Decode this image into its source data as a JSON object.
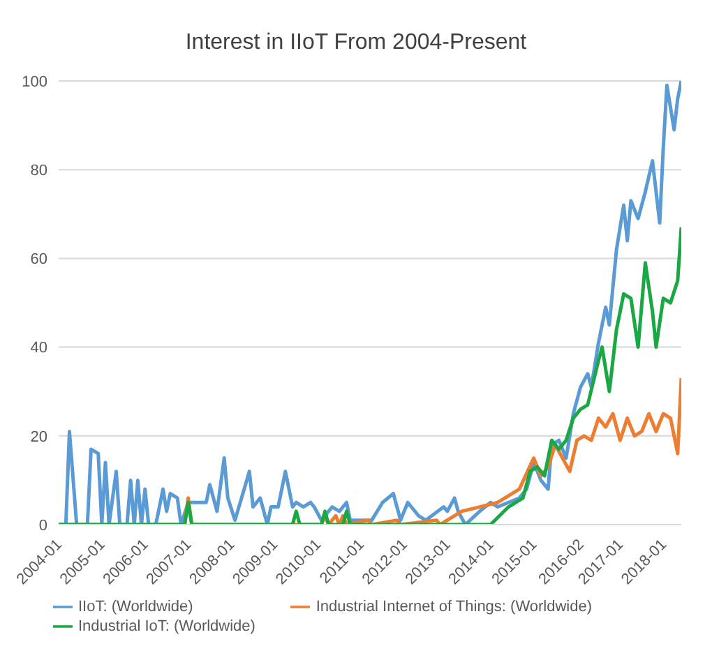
{
  "chart_data": {
    "type": "line",
    "title": "Interest in IIoT From 2004-Present",
    "xlim": [
      "2004-01",
      "2018-06"
    ],
    "xticks": [
      "2004-01",
      "2005-01",
      "2006-01",
      "2007-01",
      "2008-01",
      "2009-01",
      "2010-01",
      "2011-01",
      "2012-01",
      "2013-01",
      "2014-01",
      "2015-01",
      "2016-02",
      "2017-01",
      "2018-01"
    ],
    "ylim": [
      0,
      100
    ],
    "yticks": [
      0,
      20,
      40,
      60,
      80,
      100
    ],
    "grid": "y",
    "legend": "bottom",
    "marker": "none",
    "line_style": "solid",
    "series": [
      {
        "name": "IIoT: (Worldwide)",
        "color": "#5b9bd5",
        "x": [
          "2004-01",
          "2004-03",
          "2004-04",
          "2004-06",
          "2004-09",
          "2004-10",
          "2004-12",
          "2005-01",
          "2005-02",
          "2005-03",
          "2005-05",
          "2005-06",
          "2005-08",
          "2005-09",
          "2005-10",
          "2005-11",
          "2005-12",
          "2006-01",
          "2006-02",
          "2006-04",
          "2006-06",
          "2006-07",
          "2006-08",
          "2006-10",
          "2006-11",
          "2007-01",
          "2007-06",
          "2007-07",
          "2007-09",
          "2007-11",
          "2007-12",
          "2008-02",
          "2008-06",
          "2008-07",
          "2008-09",
          "2008-11",
          "2008-12",
          "2009-02",
          "2009-04",
          "2009-06",
          "2009-07",
          "2009-09",
          "2009-11",
          "2009-12",
          "2010-02",
          "2010-05",
          "2010-07",
          "2010-09",
          "2010-10",
          "2011-02",
          "2011-04",
          "2011-07",
          "2011-10",
          "2011-12",
          "2012-02",
          "2012-05",
          "2012-07",
          "2012-12",
          "2013-01",
          "2013-03",
          "2013-04",
          "2013-06",
          "2013-10",
          "2014-01",
          "2014-03",
          "2014-06",
          "2014-09",
          "2014-11",
          "2015-01",
          "2015-03",
          "2015-05",
          "2015-06",
          "2015-08",
          "2015-10",
          "2015-12",
          "2016-02",
          "2016-04",
          "2016-05",
          "2016-07",
          "2016-09",
          "2016-10",
          "2016-12",
          "2017-02",
          "2017-03",
          "2017-04",
          "2017-06",
          "2017-08",
          "2017-10",
          "2017-12",
          "2018-01",
          "2018-02",
          "2018-04",
          "2018-05",
          "2018-06"
        ],
        "values": [
          0,
          0,
          21,
          0,
          0,
          17,
          16,
          0,
          14,
          0,
          12,
          0,
          0,
          10,
          0,
          10,
          0,
          8,
          0,
          0,
          8,
          3,
          7,
          6,
          0,
          5,
          5,
          9,
          3,
          15,
          6,
          1,
          12,
          4,
          6,
          0,
          4,
          4,
          12,
          4,
          5,
          4,
          5,
          4,
          1,
          4,
          3,
          5,
          1,
          1,
          1,
          5,
          7,
          1,
          5,
          2,
          1,
          4,
          3,
          6,
          3,
          0,
          3,
          5,
          4,
          5,
          6,
          8,
          14,
          10,
          8,
          18,
          19,
          15,
          25,
          31,
          34,
          31,
          41,
          49,
          45,
          62,
          72,
          64,
          73,
          69,
          75,
          82,
          68,
          85,
          99,
          89,
          96,
          100
        ]
      },
      {
        "name": "Industrial Internet of Things: (Worldwide)",
        "color": "#ed7d31",
        "x": [
          "2004-01",
          "2006-12",
          "2007-01",
          "2007-02",
          "2010-02",
          "2010-03",
          "2010-04",
          "2010-06",
          "2010-07",
          "2010-08",
          "2010-09",
          "2011-03",
          "2011-04",
          "2011-11",
          "2011-12",
          "2012-10",
          "2012-11",
          "2013-05",
          "2013-10",
          "2014-03",
          "2014-09",
          "2015-01",
          "2015-03",
          "2015-05",
          "2015-07",
          "2015-11",
          "2016-01",
          "2016-03",
          "2016-05",
          "2016-07",
          "2016-09",
          "2016-11",
          "2017-01",
          "2017-03",
          "2017-05",
          "2017-07",
          "2017-09",
          "2017-11",
          "2018-01",
          "2018-03",
          "2018-05",
          "2018-06"
        ],
        "values": [
          0,
          0,
          6,
          0,
          0,
          2,
          0,
          2,
          0,
          2,
          0,
          1,
          0,
          1,
          0,
          1,
          0,
          3,
          4,
          5,
          8,
          15,
          11,
          13,
          18,
          12,
          19,
          20,
          19,
          24,
          22,
          25,
          19,
          24,
          20,
          21,
          25,
          21,
          25,
          24,
          16,
          33
        ]
      },
      {
        "name": "Industrial IoT: (Worldwide)",
        "color": "#19a844",
        "x": [
          "2004-01",
          "2006-12",
          "2007-01",
          "2007-02",
          "2009-06",
          "2009-07",
          "2009-08",
          "2010-02",
          "2010-03",
          "2010-04",
          "2010-08",
          "2010-09",
          "2010-10",
          "2014-01",
          "2014-06",
          "2014-10",
          "2014-12",
          "2015-02",
          "2015-04",
          "2015-06",
          "2015-08",
          "2015-10",
          "2015-12",
          "2016-02",
          "2016-04",
          "2016-07",
          "2016-08",
          "2016-10",
          "2016-12",
          "2017-02",
          "2017-04",
          "2017-06",
          "2017-08",
          "2017-10",
          "2017-11",
          "2018-01",
          "2018-03",
          "2018-05",
          "2018-06"
        ],
        "values": [
          0,
          0,
          5,
          0,
          0,
          3,
          0,
          0,
          3,
          0,
          0,
          3,
          0,
          0,
          4,
          6,
          12,
          13,
          11,
          19,
          17,
          19,
          24,
          26,
          27,
          37,
          40,
          30,
          44,
          52,
          51,
          40,
          59,
          48,
          40,
          51,
          50,
          55,
          67
        ]
      }
    ]
  }
}
